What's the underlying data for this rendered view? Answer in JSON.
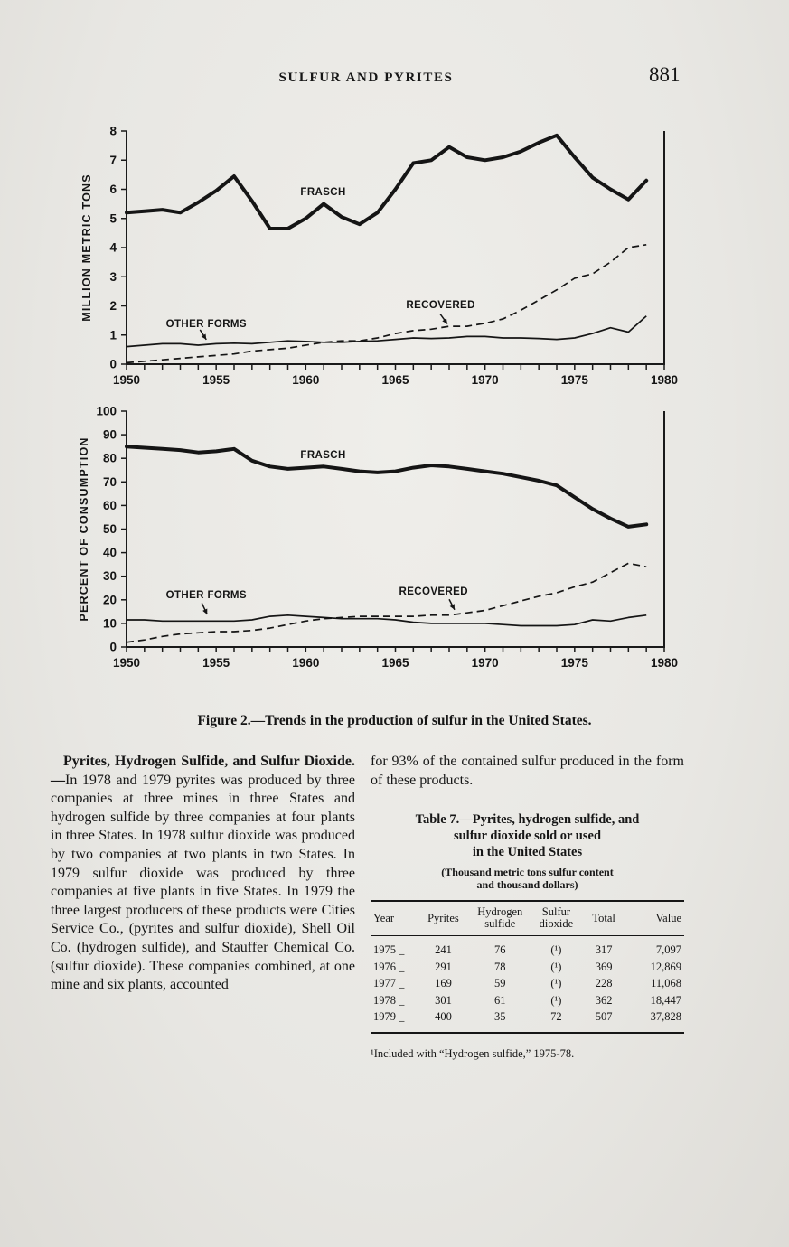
{
  "page": {
    "header_title": "SULFUR AND PYRITES",
    "page_number": "881"
  },
  "figure_caption": "Figure 2.—Trends in the production of sulfur in the United States.",
  "body": {
    "lead": "Pyrites, Hydrogen Sulfide, and Sulfur Dioxide.—",
    "left_text": "In 1978 and 1979 pyrites was produced by three companies at three mines in three States and hydrogen sulfide by three companies at four plants in three States. In 1978 sulfur dioxide was produced by two companies at two plants in two States. In 1979 sulfur dioxide was produced by three companies at five plants in five States. In 1979 the three largest producers of these products were Cities Service Co., (pyrites and sulfur dioxide), Shell Oil Co. (hydrogen sulfide), and Stauffer Chemical Co. (sulfur dioxide). These companies combined, at one mine and six plants, accounted",
    "right_text": "for 93% of the contained sulfur produced in the form of these products."
  },
  "table": {
    "title": "Table 7.—Pyrites, hydrogen sulfide, and\nsulfur dioxide sold or used\nin the United States",
    "subtitle": "(Thousand metric tons sulfur content\nand thousand dollars)",
    "columns": [
      "Year",
      "Pyrites",
      "Hydrogen\nsulfide",
      "Sulfur\ndioxide",
      "Total",
      "Value"
    ],
    "rows": [
      [
        "1975 _",
        "241",
        "76",
        "(¹)",
        "317",
        "7,097"
      ],
      [
        "1976 _",
        "291",
        "78",
        "(¹)",
        "369",
        "12,869"
      ],
      [
        "1977 _",
        "169",
        "59",
        "(¹)",
        "228",
        "11,068"
      ],
      [
        "1978 _",
        "301",
        "61",
        "(¹)",
        "362",
        "18,447"
      ],
      [
        "1979 _",
        "400",
        "35",
        "72",
        "507",
        "37,828"
      ]
    ],
    "footnote": "¹Included with “Hydrogen sulfide,” 1975-78."
  },
  "chart_data": [
    {
      "type": "line",
      "title": "Sulfur production in the United States, million metric tons",
      "xlabel": "",
      "ylabel": "MILLION METRIC TONS",
      "xlim": [
        1950,
        1980
      ],
      "ylim": [
        0,
        8
      ],
      "y_ticks": [
        0,
        1,
        2,
        3,
        4,
        5,
        6,
        7,
        8
      ],
      "x_ticks_labeled": [
        1950,
        1955,
        1960,
        1965,
        1970,
        1975,
        1980
      ],
      "grid": false,
      "x": [
        1950,
        1951,
        1952,
        1953,
        1954,
        1955,
        1956,
        1957,
        1958,
        1959,
        1960,
        1961,
        1962,
        1963,
        1964,
        1965,
        1966,
        1967,
        1968,
        1969,
        1970,
        1971,
        1972,
        1973,
        1974,
        1975,
        1976,
        1977,
        1978,
        1979
      ],
      "series": [
        {
          "name": "FRASCH",
          "style": "thick",
          "values": [
            5.2,
            5.25,
            5.3,
            5.2,
            5.55,
            5.95,
            6.45,
            5.6,
            4.65,
            4.65,
            5.0,
            5.5,
            5.05,
            4.8,
            5.2,
            6.0,
            6.9,
            7.0,
            7.45,
            7.1,
            7.0,
            7.1,
            7.3,
            7.6,
            7.85,
            7.1,
            6.4,
            6.0,
            5.65,
            6.3
          ]
        },
        {
          "name": "RECOVERED",
          "style": "dashed",
          "values": [
            0.05,
            0.1,
            0.15,
            0.2,
            0.25,
            0.3,
            0.35,
            0.45,
            0.5,
            0.55,
            0.65,
            0.75,
            0.8,
            0.8,
            0.9,
            1.05,
            1.15,
            1.2,
            1.3,
            1.3,
            1.4,
            1.55,
            1.85,
            2.2,
            2.55,
            2.95,
            3.1,
            3.5,
            4.0,
            4.1
          ]
        },
        {
          "name": "OTHER FORMS",
          "style": "thin",
          "values": [
            0.6,
            0.65,
            0.7,
            0.7,
            0.65,
            0.7,
            0.72,
            0.7,
            0.75,
            0.8,
            0.78,
            0.75,
            0.75,
            0.78,
            0.8,
            0.85,
            0.9,
            0.88,
            0.9,
            0.95,
            0.95,
            0.9,
            0.9,
            0.88,
            0.85,
            0.9,
            1.05,
            1.25,
            1.1,
            1.65
          ]
        }
      ],
      "annotations": [
        {
          "text": "FRASCH",
          "x": 1959.7,
          "y": 5.8
        },
        {
          "text": "OTHER FORMS",
          "x": 1952.2,
          "y": 1.27,
          "arrow": {
            "x1": 1954.1,
            "y1": 1.18,
            "x2": 1954.45,
            "y2": 0.84
          }
        },
        {
          "text": "RECOVERED",
          "x": 1965.6,
          "y": 1.92,
          "arrow": {
            "x1": 1967.5,
            "y1": 1.72,
            "x2": 1967.9,
            "y2": 1.38
          }
        }
      ]
    },
    {
      "type": "line",
      "title": "Sulfur production as percent of consumption",
      "xlabel": "",
      "ylabel": "PERCENT OF CONSUMPTION",
      "xlim": [
        1950,
        1980
      ],
      "ylim": [
        0,
        100
      ],
      "y_ticks": [
        0,
        10,
        20,
        30,
        40,
        50,
        60,
        70,
        80,
        90,
        100
      ],
      "x_ticks_labeled": [
        1950,
        1955,
        1960,
        1965,
        1970,
        1975,
        1980
      ],
      "grid": false,
      "x": [
        1950,
        1951,
        1952,
        1953,
        1954,
        1955,
        1956,
        1957,
        1958,
        1959,
        1960,
        1961,
        1962,
        1963,
        1964,
        1965,
        1966,
        1967,
        1968,
        1969,
        1970,
        1971,
        1972,
        1973,
        1974,
        1975,
        1976,
        1977,
        1978,
        1979
      ],
      "series": [
        {
          "name": "FRASCH",
          "style": "thick",
          "values": [
            85,
            84.5,
            84,
            83.5,
            82.5,
            83,
            84,
            79,
            76.5,
            75.5,
            76,
            76.5,
            75.5,
            74.5,
            74,
            74.5,
            76,
            77,
            76.5,
            75.5,
            74.5,
            73.5,
            72,
            70.5,
            68.5,
            63.5,
            58.5,
            54.5,
            51,
            52
          ]
        },
        {
          "name": "RECOVERED",
          "style": "dashed",
          "values": [
            2,
            3,
            4.5,
            5.5,
            6,
            6.5,
            6.5,
            7,
            8,
            9.5,
            11,
            12,
            12.5,
            13,
            13,
            13,
            13,
            13.5,
            13.5,
            14.5,
            15.5,
            17.5,
            19.5,
            21.5,
            23,
            25.5,
            27.5,
            31.5,
            35.5,
            34
          ]
        },
        {
          "name": "OTHER FORMS",
          "style": "thin",
          "values": [
            11.5,
            11.5,
            11,
            11,
            11,
            11,
            11,
            11.5,
            13,
            13.5,
            13,
            12.5,
            12,
            12,
            12,
            11.5,
            10.5,
            10,
            10,
            10,
            10,
            9.5,
            9,
            9,
            9,
            9.5,
            11.5,
            11,
            12.5,
            13.5
          ]
        }
      ],
      "annotations": [
        {
          "text": "FRASCH",
          "x": 1959.7,
          "y": 80
        },
        {
          "text": "OTHER FORMS",
          "x": 1952.2,
          "y": 20.7,
          "arrow": {
            "x1": 1954.2,
            "y1": 18.6,
            "x2": 1954.5,
            "y2": 13.8
          }
        },
        {
          "text": "RECOVERED",
          "x": 1965.2,
          "y": 22.2,
          "arrow": {
            "x1": 1968.0,
            "y1": 20.2,
            "x2": 1968.3,
            "y2": 15.8
          }
        }
      ]
    }
  ]
}
